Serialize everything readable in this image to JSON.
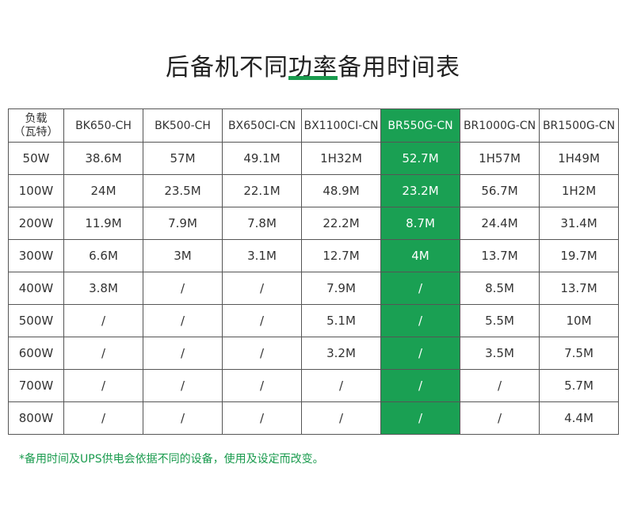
{
  "title": "后备机不同功率备用时间表",
  "colors": {
    "accent": "#1aa053",
    "highlight_column": "BR550G-CN"
  },
  "table": {
    "corner_line1": "负载",
    "corner_line2": "（瓦特）",
    "models": [
      "BK650-CH",
      "BK500-CH",
      "BX650CI-CN",
      "BX1100CI-CN",
      "BR550G-CN",
      "BR1000G-CN",
      "BR1500G-CN"
    ],
    "rows": [
      {
        "load": "50W",
        "values": [
          "38.6M",
          "57M",
          "49.1M",
          "1H32M",
          "52.7M",
          "1H57M",
          "1H49M"
        ]
      },
      {
        "load": "100W",
        "values": [
          "24M",
          "23.5M",
          "22.1M",
          "48.9M",
          "23.2M",
          "56.7M",
          "1H2M"
        ]
      },
      {
        "load": "200W",
        "values": [
          "11.9M",
          "7.9M",
          "7.8M",
          "22.2M",
          "8.7M",
          "24.4M",
          "31.4M"
        ]
      },
      {
        "load": "300W",
        "values": [
          "6.6M",
          "3M",
          "3.1M",
          "12.7M",
          "4M",
          "13.7M",
          "19.7M"
        ]
      },
      {
        "load": "400W",
        "values": [
          "3.8M",
          "/",
          "/",
          "7.9M",
          "/",
          "8.5M",
          "13.7M"
        ]
      },
      {
        "load": "500W",
        "values": [
          "/",
          "/",
          "/",
          "5.1M",
          "/",
          "5.5M",
          "10M"
        ]
      },
      {
        "load": "600W",
        "values": [
          "/",
          "/",
          "/",
          "3.2M",
          "/",
          "3.5M",
          "7.5M"
        ]
      },
      {
        "load": "700W",
        "values": [
          "/",
          "/",
          "/",
          "/",
          "/",
          "/",
          "5.7M"
        ]
      },
      {
        "load": "800W",
        "values": [
          "/",
          "/",
          "/",
          "/",
          "/",
          "/",
          "4.4M"
        ]
      }
    ]
  },
  "footnote": "*备用时间及UPS供电会依据不同的设备，使用及设定而改变。"
}
